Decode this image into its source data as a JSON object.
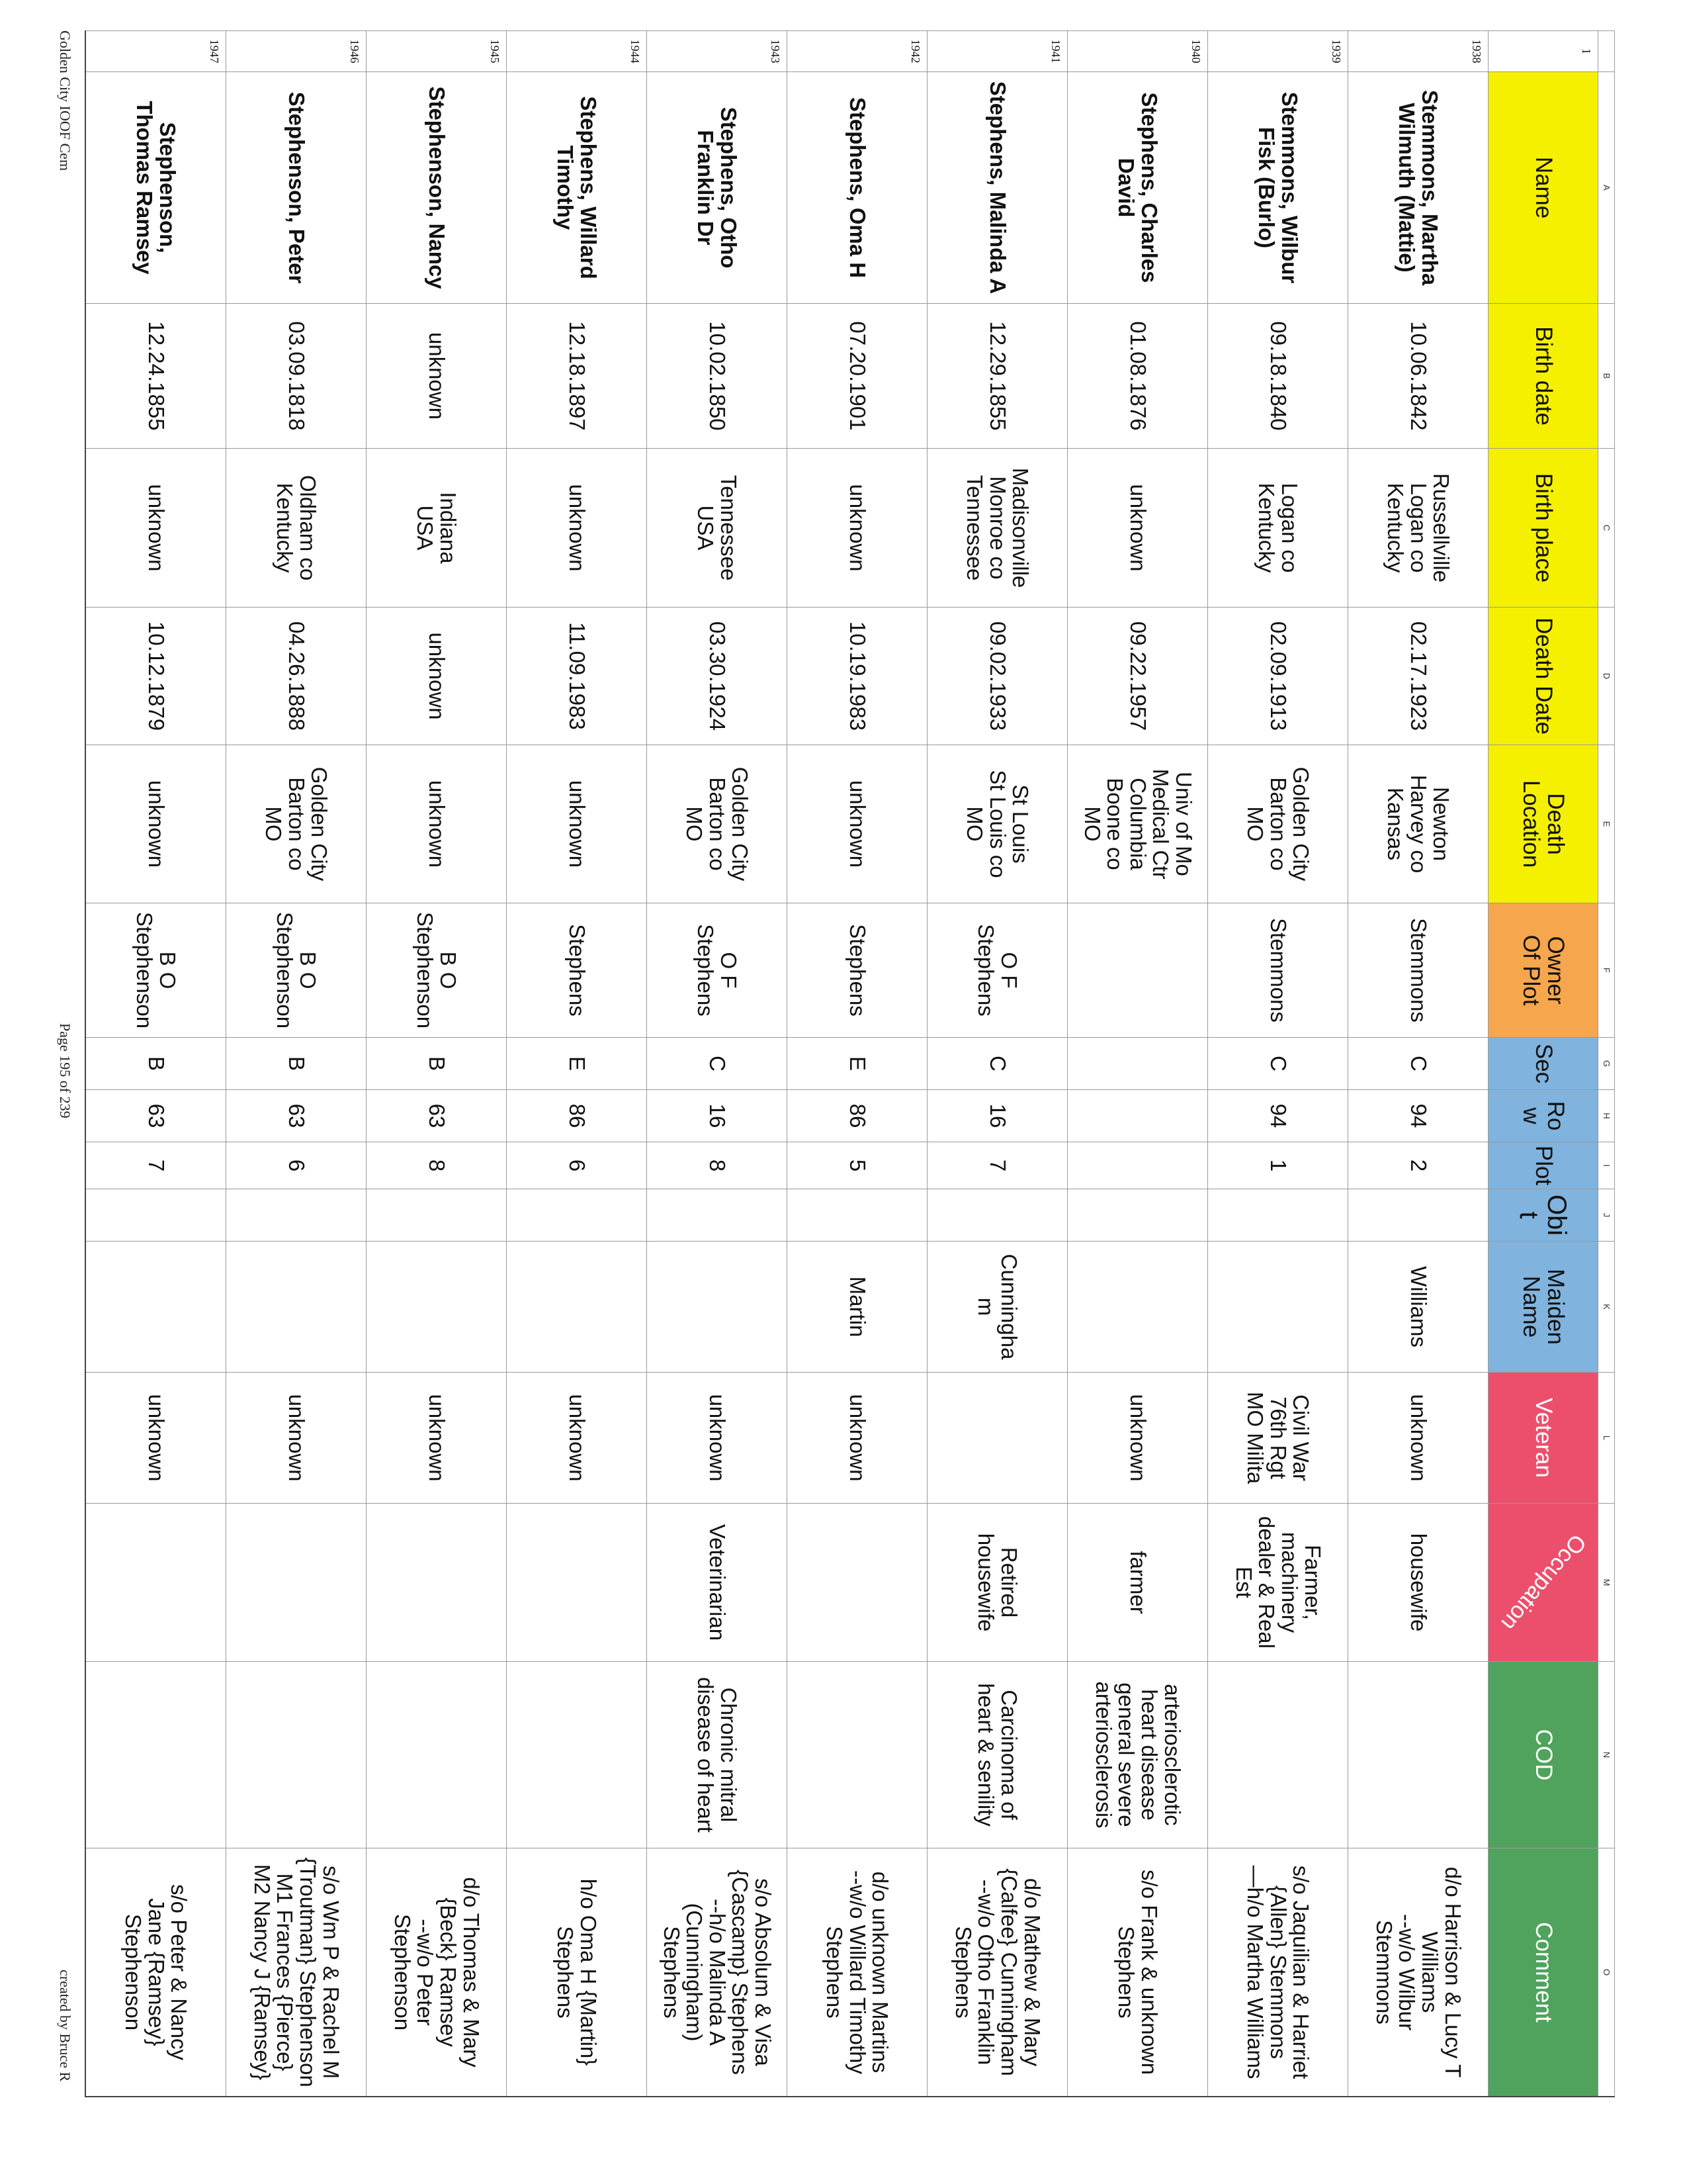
{
  "colors": {
    "yellow": "#f4f000",
    "orange": "#f6a64c",
    "blue": "#80b3dd",
    "red": "#ec4f6c",
    "green": "#4fa35c"
  },
  "column_letters": [
    "A",
    "B",
    "C",
    "D",
    "E",
    "F",
    "G",
    "H",
    "I",
    "J",
    "K",
    "L",
    "M",
    "N",
    "O"
  ],
  "header_row_number": "1",
  "headers": [
    {
      "label": "Name",
      "color": "yellow"
    },
    {
      "label": "Birth date",
      "color": "yellow"
    },
    {
      "label": "Birth place",
      "color": "yellow"
    },
    {
      "label": "Death Date",
      "color": "yellow"
    },
    {
      "label": "Death\nLocation",
      "color": "yellow"
    },
    {
      "label": "Owner\nOf Plot",
      "color": "orange"
    },
    {
      "label": "Sec",
      "color": "blue"
    },
    {
      "label": "Row",
      "color": "blue"
    },
    {
      "label": "Plot",
      "color": "blue"
    },
    {
      "label": "Obit",
      "color": "blue"
    },
    {
      "label": "Maiden\nName",
      "color": "blue"
    },
    {
      "label": "Veteran",
      "color": "red"
    },
    {
      "label": "Occupation",
      "color": "red"
    },
    {
      "label": "COD",
      "color": "green"
    },
    {
      "label": "Comment",
      "color": "green"
    }
  ],
  "rows": [
    {
      "num": "1938",
      "cells": [
        "Stemmons, Martha\nWilmuth (Mattie)",
        "10.06.1842",
        "Russellville\nLogan co\nKentucky",
        "02.17.1923",
        "Newton\nHarvey co\nKansas",
        "Stemmons",
        "C",
        "94",
        "2",
        "",
        "Williams",
        "unknown",
        "housewife",
        "",
        "d/o Harrison & Lucy T\nWilliams\n--w/o Wilbur\nStemmons"
      ]
    },
    {
      "num": "1939",
      "cells": [
        "Stemmons, Wilbur\nFisk (Burlo)",
        "09.18.1840",
        "Logan co\nKentucky",
        "02.09.1913",
        "Golden City\nBarton co\nMO",
        "Stemmons",
        "C",
        "94",
        "1",
        "",
        "",
        "Civil War\n76th Rgt\nMO Milita",
        "Farmer,\nmachinery\ndealer & Real\nEst",
        "",
        "s/o Jaquilian & Harriet\n{Allen} Stemmons\n—h/o Martha Williams"
      ]
    },
    {
      "num": "1940",
      "cells": [
        "Stephens, Charles\nDavid",
        "01.08.1876",
        "unknown",
        "09.22.1957",
        "Univ of Mo\nMedical Ctr\nColumbia\nBoone co\nMO",
        "",
        "",
        "",
        "",
        "",
        "",
        "unknown",
        "farmer",
        "arteriosclerotic\nheart disease\ngeneral severe\narteriosclerosis",
        "s/o Frank & unknown\nStephens"
      ]
    },
    {
      "num": "1941",
      "cells": [
        "Stephens, Malinda A",
        "12.29.1855",
        "Madisonville\nMonroe co\nTennessee",
        "09.02.1933",
        "St Louis\nSt Louis co\nMO",
        "O F\nStephens",
        "C",
        "16",
        "7",
        "",
        "Cunningha\nm",
        "",
        "Retired\nhousewife",
        "Carcinoma of\nheart & senility",
        "d/o Mathew & Mary\n{Calfee} Cunningham\n--w/o Otho Franklin\nStephens"
      ]
    },
    {
      "num": "1942",
      "cells": [
        "Stephens, Oma H",
        "07.20.1901",
        "unknown",
        "10.19.1983",
        "unknown",
        "Stephens",
        "E",
        "86",
        "5",
        "",
        "Martin",
        "unknown",
        "",
        "",
        "d/o unknown Martins\n--w/o Willard Timothy\nStephens"
      ]
    },
    {
      "num": "1943",
      "cells": [
        "Stephens, Otho\nFranklin Dr",
        "10.02.1850",
        "Tennessee\nUSA",
        "03.30.1924",
        "Golden City\nBarton co\nMO",
        "O F\nStephens",
        "C",
        "16",
        "8",
        "",
        "",
        "unknown",
        "Veterinarian",
        "Chronic mitral\ndisease of heart",
        "s/o Absolum & Visa\n{Cascamp} Stephens\n--h/o Malinda A\n(Cunningham)\nStephens"
      ]
    },
    {
      "num": "1944",
      "cells": [
        "Stephens, Willard\nTimothy",
        "12.18.1897",
        "unknown",
        "11.09.1983",
        "unknown",
        "Stephens",
        "E",
        "86",
        "6",
        "",
        "",
        "unknown",
        "",
        "",
        "h/o Oma H {Martin}\nStephens"
      ]
    },
    {
      "num": "1945",
      "cells": [
        "Stephenson, Nancy",
        "unknown",
        "Indiana\nUSA",
        "unknown",
        "unknown",
        "B O\nStephenson",
        "B",
        "63",
        "8",
        "",
        "",
        "unknown",
        "",
        "",
        "d/o Thomas & Mary\n{Beck} Ramsey\n--w/o Peter\nStephenson"
      ]
    },
    {
      "num": "1946",
      "cells": [
        "Stephenson, Peter",
        "03.09.1818",
        "Oldham co\nKentucky",
        "04.26.1888",
        "Golden City\nBarton co\nMO",
        "B O\nStephenson",
        "B",
        "63",
        "6",
        "",
        "",
        "unknown",
        "",
        "",
        "s/o Wm P & Rachel M\n{Troutman} Stephenson\nM1 Frances {Pierce}\nM2 Nancy J {Ramsey}"
      ]
    },
    {
      "num": "1947",
      "cells": [
        "Stephenson,\nThomas Ramsey",
        "12.24.1855",
        "unknown",
        "10.12.1879",
        "unknown",
        "B O\nStephenson",
        "B",
        "63",
        "7",
        "",
        "",
        "unknown",
        "",
        "",
        "s/o Peter & Nancy\nJane {Ramsey}\nStephenson"
      ]
    }
  ],
  "footer": {
    "left": "Golden City IOOF Cem",
    "center": "Page 195 of 239",
    "right": "created by Bruce R"
  }
}
